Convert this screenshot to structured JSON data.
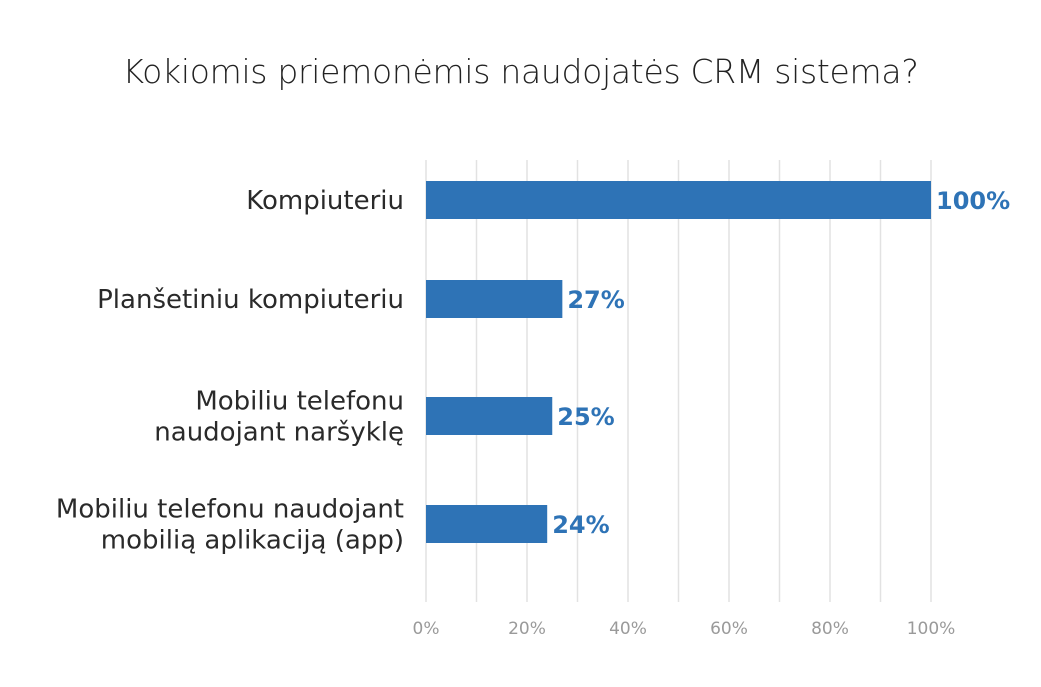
{
  "chart_data": {
    "type": "bar",
    "orientation": "horizontal",
    "title": "Kokiomis priemonėmis naudojatės CRM sistema?",
    "xlabel": "",
    "ylabel": "",
    "categories": [
      [
        "Kompiuteriu"
      ],
      [
        "Planšetiniu kompiuteriu"
      ],
      [
        "Mobiliu telefonu",
        "naudojant naršyklę"
      ],
      [
        "Mobiliu telefonu naudojant",
        "mobilią aplikaciją (app)"
      ]
    ],
    "values": [
      100,
      27,
      25,
      24
    ],
    "value_labels": [
      "100%",
      "27%",
      "25%",
      "24%"
    ],
    "xlim": [
      0,
      100
    ],
    "x_ticks": [
      0,
      20,
      40,
      60,
      80,
      100
    ],
    "x_tick_labels": [
      "0%",
      "20%",
      "40%",
      "60%",
      "80%",
      "100%"
    ],
    "grid": true,
    "legend": "none",
    "colors": {
      "bar": "#2e73b6",
      "value_label": "#2e73b6",
      "grid": "#e2e2e2",
      "tick_label": "#9a9a9a",
      "category_label": "#2a2a2a"
    }
  }
}
